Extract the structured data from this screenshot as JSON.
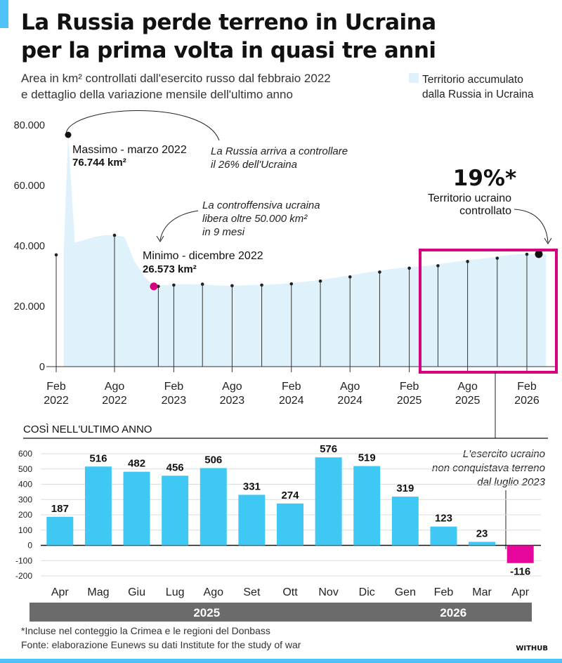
{
  "header": {
    "title_line1": "La Russia perde terreno in Ucraina",
    "title_line2": "per la prima volta in quasi tre anni",
    "subtitle_line1": "Area in km² controllati dall'esercito russo dal febbraio 2022",
    "subtitle_line2": "e dettaglio della variazione mensile dell'ultimo anno",
    "legend_line1": "Territorio accumulato",
    "legend_line2": "dalla Russia in Ucraina"
  },
  "colors": {
    "area_fill": "#dff2fb",
    "bar_positive": "#40c8f4",
    "bar_negative": "#e6069c",
    "highlight": "#d6007e",
    "band": "#6b6b6b",
    "accent": "#4fc3f7"
  },
  "annotations": {
    "max_label": "Massimo - marzo 2022",
    "max_value": "76.744 km²",
    "russia_note_1": "La Russia arriva a controllare",
    "russia_note_2": "il 26% dell'Ucraina",
    "counter_note_1": "La controffensiva ucraina",
    "counter_note_2": "libera oltre 50.000 km²",
    "counter_note_3": "in 9 mesi",
    "min_label": "Minimo - dicembre 2022",
    "min_value": "26.573 km²",
    "pct": "19%*",
    "pct_note_1": "Territorio ucraino",
    "pct_note_2": "controllato",
    "last_year_title": "COSÌ NELL'ULTIMO ANNO",
    "ukr_note_1": "L'esercito ucraino",
    "ukr_note_2": "non conquistava terreno",
    "ukr_note_3": "dal luglio 2023"
  },
  "footer": {
    "note": "*Incluse nel conteggio la Crimea e le regioni del Donbass",
    "source": "Fonte: elaborazione Eunews su dati Institute for the study of war",
    "brand": "WITHUB"
  },
  "chart_data": [
    {
      "type": "area",
      "series": [
        {
          "name": "Territorio accumulato dalla Russia in Ucraina",
          "x": [
            "2022-02-24",
            "2022-03-10",
            "2022-03-31",
            "2022-05-01",
            "2022-06-01",
            "2022-07-01",
            "2022-08-01",
            "2022-09-01",
            "2022-10-01",
            "2022-11-01",
            "2022-12-01",
            "2023-01-01",
            "2023-02-01",
            "2023-03-01",
            "2023-04-01",
            "2023-05-01",
            "2023-06-01",
            "2023-07-01",
            "2023-08-01",
            "2023-09-01",
            "2023-10-01",
            "2023-11-01",
            "2023-12-01",
            "2024-01-01",
            "2024-02-01",
            "2024-03-01",
            "2024-04-01",
            "2024-05-01",
            "2024-06-01",
            "2024-07-01",
            "2024-08-01",
            "2024-09-01",
            "2024-10-01",
            "2024-11-01",
            "2024-12-01",
            "2025-01-01",
            "2025-02-01",
            "2025-03-01",
            "2025-04-01",
            "2025-05-01",
            "2025-06-01",
            "2025-07-01",
            "2025-08-01",
            "2025-09-01",
            "2025-10-01",
            "2025-11-01",
            "2025-12-01",
            "2026-01-01",
            "2026-02-01",
            "2026-03-01",
            "2026-04-01"
          ],
          "y": [
            37000,
            76744,
            41000,
            42000,
            43000,
            43500,
            43500,
            43000,
            35000,
            30000,
            26573,
            27000,
            27200,
            27300,
            27300,
            27200,
            27000,
            26800,
            26800,
            26900,
            27000,
            27100,
            27200,
            27400,
            27700,
            28000,
            28300,
            28700,
            29200,
            29700,
            30200,
            30800,
            31300,
            31800,
            32200,
            32600,
            32900,
            33200,
            33400,
            33900,
            34400,
            34800,
            35300,
            35600,
            35900,
            36400,
            36900,
            37200,
            37300,
            37300,
            37200
          ]
        }
      ],
      "xticks": [
        "Feb 2022",
        "Ago 2022",
        "Feb 2023",
        "Ago 2023",
        "Feb 2024",
        "Ago 2024",
        "Feb 2025",
        "Ago 2025",
        "Feb 2026"
      ],
      "yticks": [
        "0",
        "20.000",
        "40.000",
        "60.000",
        "80.000"
      ],
      "ylim": [
        0,
        80000
      ],
      "grid": false,
      "legend": "top-right"
    },
    {
      "type": "bar",
      "categories": [
        "Apr",
        "Mag",
        "Giu",
        "Lug",
        "Ago",
        "Set",
        "Ott",
        "Nov",
        "Dic",
        "Gen",
        "Feb",
        "Mar",
        "Apr"
      ],
      "values": [
        187,
        516,
        482,
        456,
        506,
        331,
        274,
        576,
        519,
        319,
        123,
        23,
        -116
      ],
      "value_labels": [
        "187",
        "516",
        "482",
        "456",
        "506",
        "331",
        "274",
        "576",
        "519",
        "319",
        "123",
        "23",
        "-116"
      ],
      "year_groups": [
        {
          "label": "2025",
          "count": 9
        },
        {
          "label": "2026",
          "count": 4
        }
      ],
      "yticks": [
        "-200",
        "-100",
        "0",
        "100",
        "200",
        "300",
        "400",
        "500",
        "600"
      ],
      "ylim": [
        -200,
        600
      ],
      "grid": true
    }
  ]
}
